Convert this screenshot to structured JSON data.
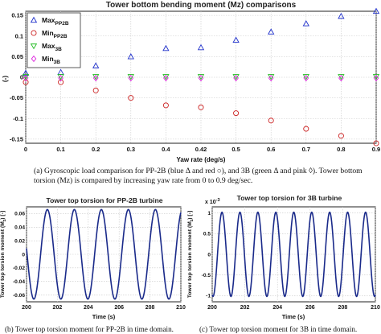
{
  "chart_data": [
    {
      "id": "a",
      "type": "scatter",
      "title": "Tower bottom bending moment (Mz) comparisons",
      "xlabel": "Yaw rate (deg/s)",
      "ylabel": "(-)",
      "categories": [
        "0",
        "0.1",
        "0.2",
        "0.3",
        "0.4",
        "0.42",
        "0.5",
        "0.6",
        "0.7",
        "0.8",
        "0.9"
      ],
      "yticks": [
        "-0.15",
        "-0.1",
        "-0.05",
        "0",
        "0.05",
        "0.1",
        "0.15"
      ],
      "ylim": [
        -0.16,
        0.16
      ],
      "legend_position": "top-left",
      "series": [
        {
          "label_main": "Max",
          "label_sub": "PP2B",
          "marker": "triangle",
          "color": "#2233cc",
          "values": [
            0.01,
            0.012,
            0.028,
            0.05,
            0.07,
            0.072,
            0.09,
            0.11,
            0.13,
            0.148,
            0.165
          ]
        },
        {
          "label_main": "Min",
          "label_sub": "PP2B",
          "marker": "circle",
          "color": "#cc2222",
          "values": [
            -0.012,
            -0.012,
            -0.032,
            -0.05,
            -0.068,
            -0.073,
            -0.087,
            -0.105,
            -0.125,
            -0.142,
            -0.16
          ]
        },
        {
          "label_main": "Max",
          "label_sub": "3B",
          "marker": "triangle-down",
          "color": "#22bb22",
          "values": [
            0.002,
            0.002,
            0.002,
            0.002,
            0.002,
            0.002,
            0.002,
            0.002,
            0.002,
            0.002,
            0.002
          ]
        },
        {
          "label_main": "Min",
          "label_sub": "3B",
          "marker": "diamond",
          "color": "#dd22dd",
          "values": [
            -0.002,
            -0.002,
            -0.002,
            -0.002,
            -0.002,
            -0.002,
            -0.002,
            -0.002,
            -0.002,
            -0.002,
            -0.002
          ]
        }
      ]
    },
    {
      "id": "b",
      "type": "line",
      "title": "Tower top torsion for PP-2B turbine",
      "xlabel": "Time (s)",
      "ylabel_main": "Tower top torsion moment (M",
      "ylabel_sub": "z",
      "ylabel_tail": ") [-]",
      "xlim": [
        200,
        210
      ],
      "ylim": [
        -0.07,
        0.07
      ],
      "xticks": [
        "200",
        "202",
        "204",
        "206",
        "208",
        "210"
      ],
      "yticks": [
        "-0.06",
        "-0.04",
        "-0.02",
        "0",
        "0.02",
        "0.04",
        "0.06"
      ],
      "signal": {
        "amplitude": 0.066,
        "period_s": 1.75,
        "phase_s": 201.35
      },
      "color": "#1a2a8a"
    },
    {
      "id": "c",
      "type": "line",
      "title": "Tower top torsion for 3B turbine",
      "xlabel": "Time (s)",
      "ylabel_main": "Tower top torsion moment (M",
      "ylabel_sub": "z",
      "ylabel_tail": ") [-]",
      "exponent": "x 10",
      "exponent_power": "-3",
      "xlim": [
        200,
        210
      ],
      "ylim": [
        -1.15,
        1.15
      ],
      "xticks": [
        "200",
        "202",
        "204",
        "206",
        "208",
        "210"
      ],
      "yticks": [
        "-1",
        "-0.5",
        "0",
        "0.5",
        "1"
      ],
      "signal": {
        "amplitude": 1.02,
        "period_s": 1.1,
        "phase_s": 200.6
      },
      "color": "#1a2a8a"
    }
  ],
  "captions": {
    "a": "(a) Gyroscopic load comparison for PP-2B (blue Δ and red ○), and 3B (green Δ and pink ◊). Tower bottom torsion (Mz) is compared by increasing yaw rate from 0 to 0.9 deg/sec.",
    "b": "(b) Tower top torsion moment for PP-2B in time domain.",
    "c": "(c) Tower top torsion moment for 3B in time domain."
  }
}
